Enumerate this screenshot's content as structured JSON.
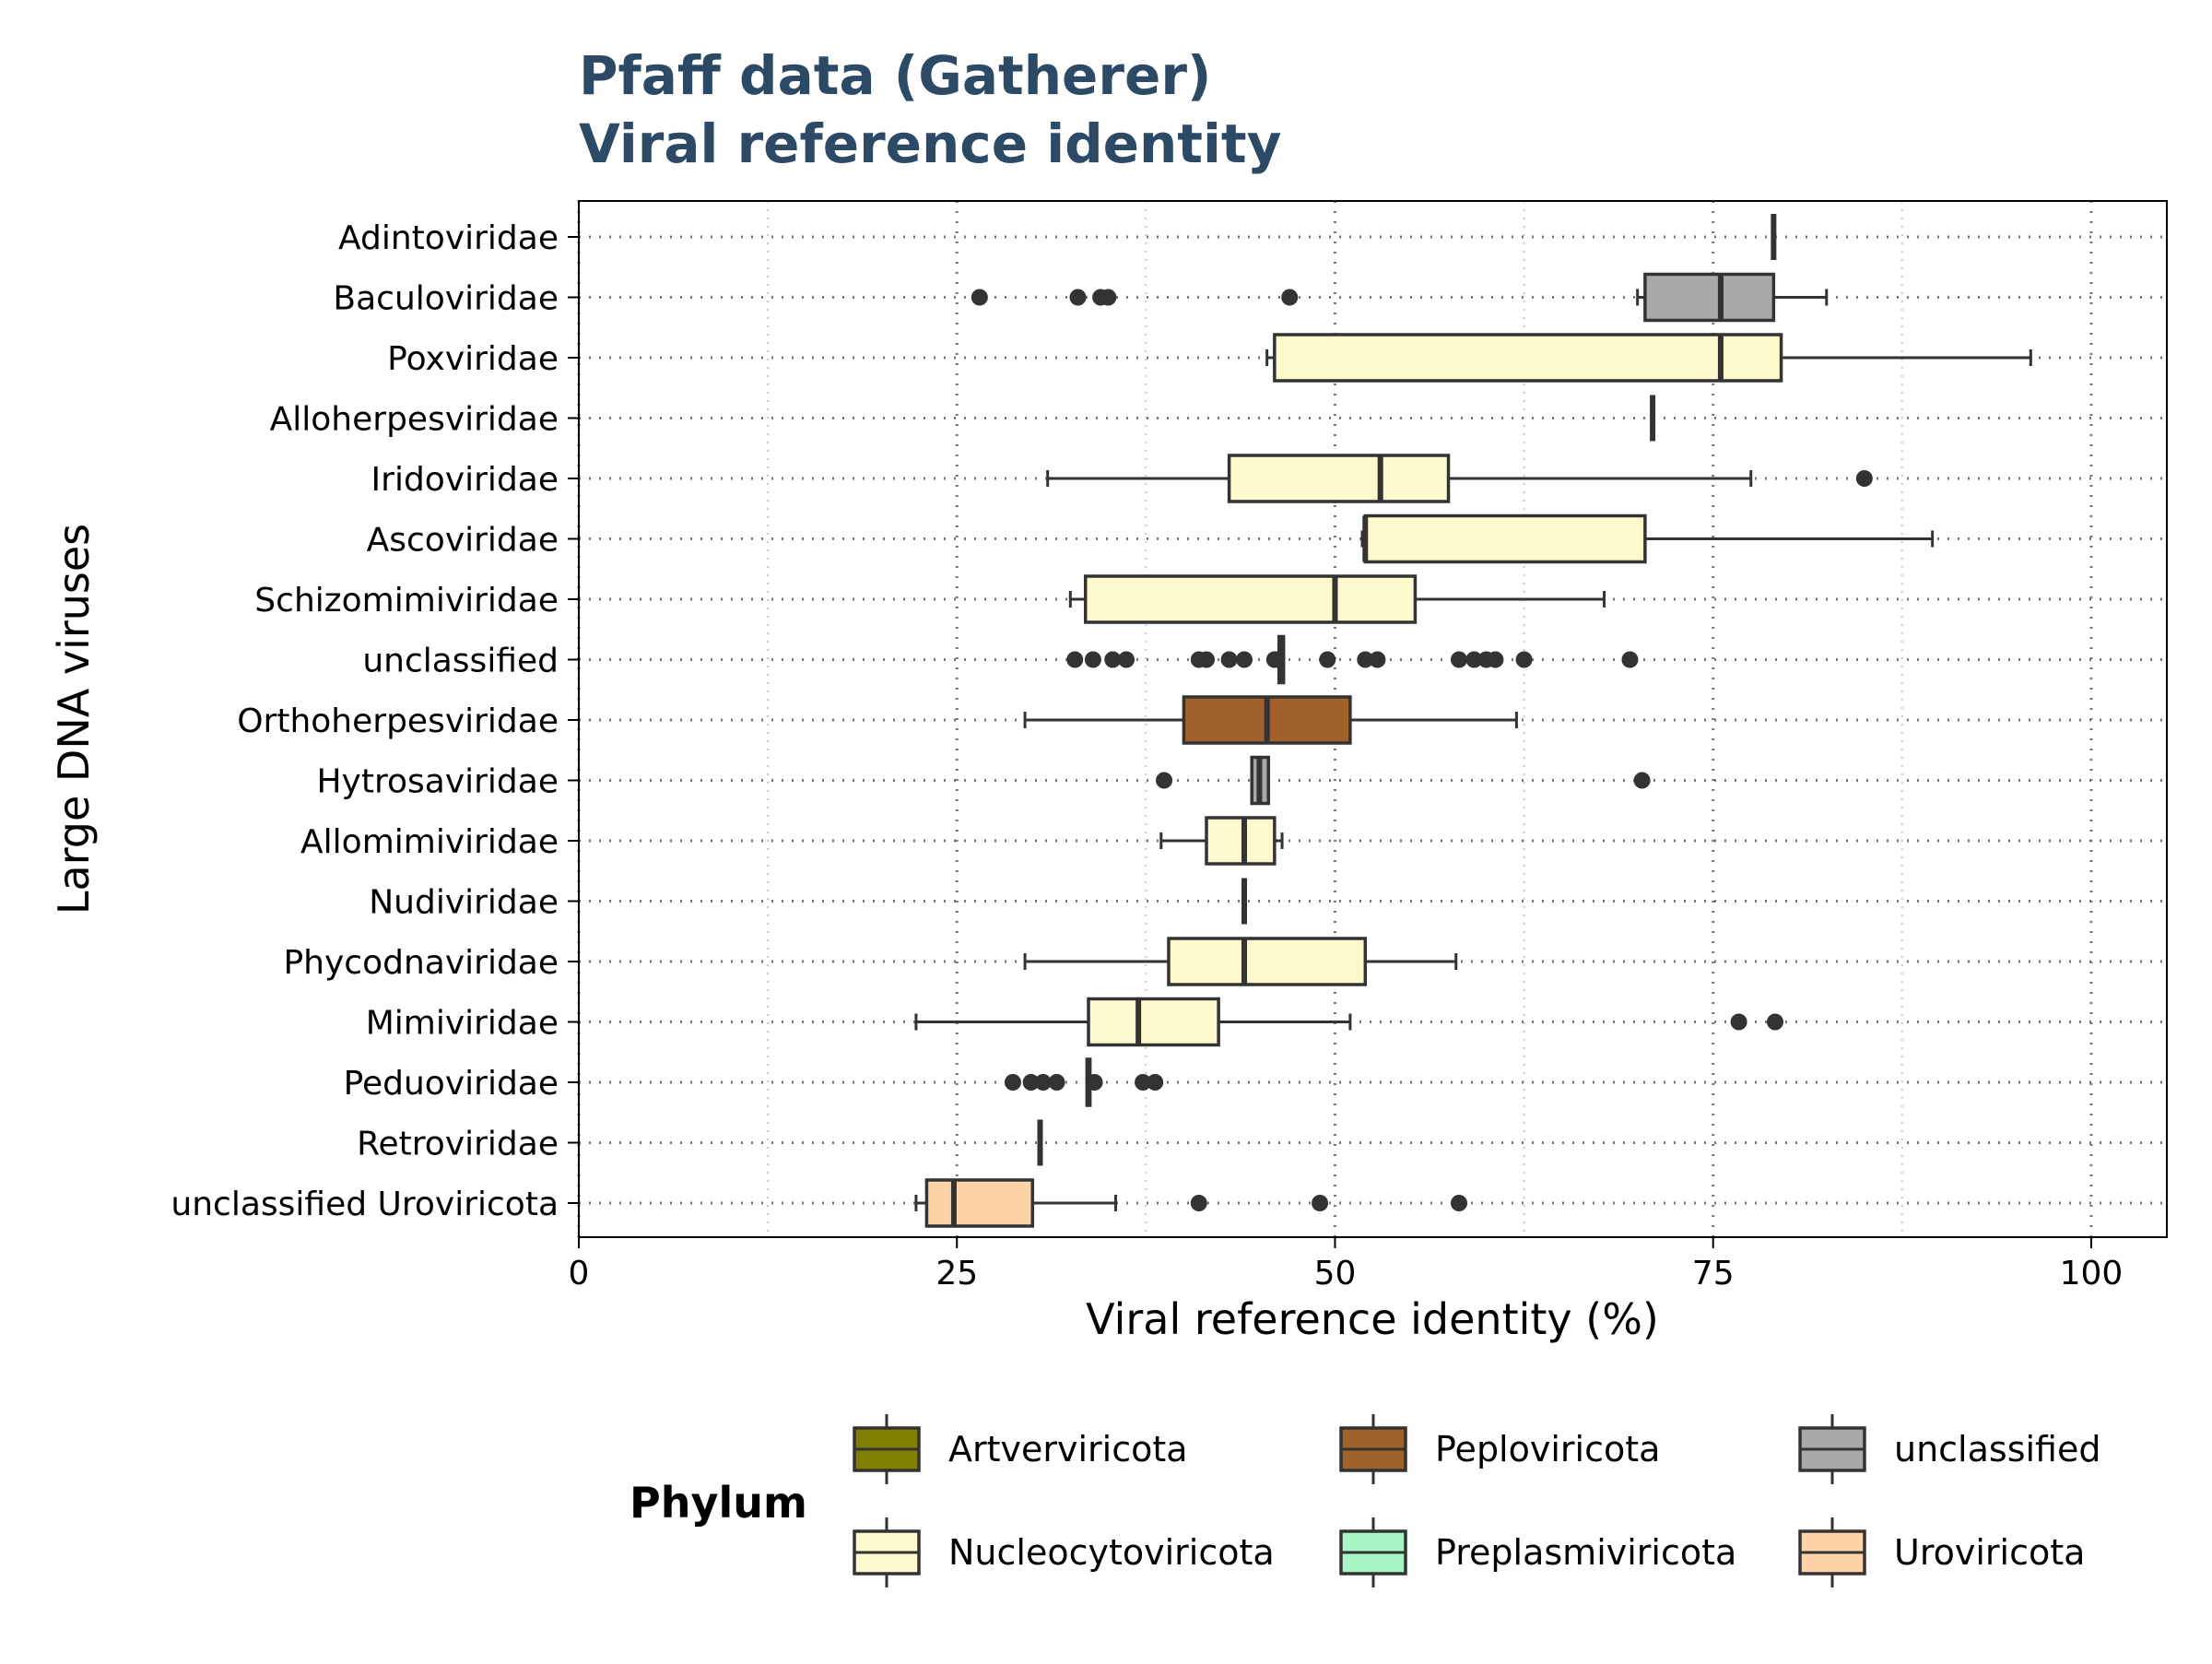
{
  "chart_data": {
    "type": "box",
    "orientation": "horizontal",
    "title": [
      "Pfaff data (Gatherer)",
      "Viral reference identity"
    ],
    "title_color": "#2c4a66",
    "xlabel": "Viral reference identity (%)",
    "ylabel": "Large DNA viruses",
    "xlim": [
      0,
      105
    ],
    "xticks": [
      0,
      25,
      50,
      75,
      100
    ],
    "xtick_labels": [
      "0",
      "25",
      "50",
      "75",
      "100"
    ],
    "grid": true,
    "legend_title": "Phylum",
    "legend_position": "bottom",
    "legend": [
      {
        "name": "Artverviricota",
        "color": "#808000"
      },
      {
        "name": "Peploviricota",
        "color": "#a0622a"
      },
      {
        "name": "unclassified",
        "color": "#a9a9a9"
      },
      {
        "name": "Nucleocytoviricota",
        "color": "#fffacd"
      },
      {
        "name": "Preplasmiviricota",
        "color": "#a6f5c4"
      },
      {
        "name": "Uroviricota",
        "color": "#ffd3a8"
      }
    ],
    "categories": [
      "Adintoviridae",
      "Baculoviridae",
      "Poxviridae",
      "Alloherpesviridae",
      "Iridoviridae",
      "Ascoviridae",
      "Schizomimiviridae",
      "unclassified",
      "Orthoherpesviridae",
      "Hytrosaviridae",
      "Allomimiviridae",
      "Nudiviridae",
      "Phycodnaviridae",
      "Mimiviridae",
      "Peduoviridae",
      "Retroviridae",
      "unclassified Uroviricota"
    ],
    "boxes": [
      {
        "category": "Adintoviridae",
        "phylum": "unclassified",
        "whislo": 79,
        "q1": 79,
        "med": 79,
        "q3": 79,
        "whishi": 79,
        "fliers": []
      },
      {
        "category": "Baculoviridae",
        "phylum": "unclassified",
        "whislo": 70,
        "q1": 70.5,
        "med": 75.5,
        "q3": 79,
        "whishi": 82.5,
        "fliers": [
          26.5,
          33,
          34.5,
          35,
          47
        ]
      },
      {
        "category": "Poxviridae",
        "phylum": "Nucleocytoviricota",
        "whislo": 45.5,
        "q1": 46,
        "med": 75.5,
        "q3": 79.5,
        "whishi": 96,
        "fliers": []
      },
      {
        "category": "Alloherpesviridae",
        "phylum": "Nucleocytoviricota",
        "whislo": 71,
        "q1": 71,
        "med": 71,
        "q3": 71,
        "whishi": 71,
        "fliers": []
      },
      {
        "category": "Iridoviridae",
        "phylum": "Nucleocytoviricota",
        "whislo": 31,
        "q1": 43,
        "med": 53,
        "q3": 57.5,
        "whishi": 77.5,
        "fliers": [
          85
        ]
      },
      {
        "category": "Ascoviridae",
        "phylum": "Nucleocytoviricota",
        "whislo": 51.8,
        "q1": 52,
        "med": 52,
        "q3": 70.5,
        "whishi": 89.5,
        "fliers": []
      },
      {
        "category": "Schizomimiviridae",
        "phylum": "Nucleocytoviricota",
        "whislo": 32.5,
        "q1": 33.5,
        "med": 50,
        "q3": 55.3,
        "whishi": 67.8,
        "fliers": []
      },
      {
        "category": "unclassified",
        "phylum": "Nucleocytoviricota",
        "whislo": 46.2,
        "q1": 46.3,
        "med": 46.5,
        "q3": 46.6,
        "whishi": 46.6,
        "fliers": [
          32.8,
          34,
          35.3,
          36.2,
          41,
          41.5,
          43,
          44,
          46,
          49.5,
          52,
          52.8,
          58.2,
          59.2,
          60,
          60.6,
          62.5,
          69.5
        ]
      },
      {
        "category": "Orthoherpesviridae",
        "phylum": "Peploviricota",
        "whislo": 29.5,
        "q1": 40,
        "med": 45.5,
        "q3": 51,
        "whishi": 62,
        "fliers": []
      },
      {
        "category": "Hytrosaviridae",
        "phylum": "unclassified",
        "whislo": 44.5,
        "q1": 44.5,
        "med": 45,
        "q3": 45.6,
        "whishi": 45.6,
        "fliers": [
          38.7,
          70.3
        ]
      },
      {
        "category": "Allomimiviridae",
        "phylum": "Nucleocytoviricota",
        "whislo": 38.5,
        "q1": 41.5,
        "med": 44,
        "q3": 46,
        "whishi": 46.5,
        "fliers": []
      },
      {
        "category": "Nudiviridae",
        "phylum": "Nucleocytoviricota",
        "whislo": 44,
        "q1": 44,
        "med": 44,
        "q3": 44,
        "whishi": 44,
        "fliers": []
      },
      {
        "category": "Phycodnaviridae",
        "phylum": "Nucleocytoviricota",
        "whislo": 29.5,
        "q1": 39,
        "med": 44,
        "q3": 52,
        "whishi": 58,
        "fliers": []
      },
      {
        "category": "Mimiviridae",
        "phylum": "Nucleocytoviricota",
        "whislo": 22.3,
        "q1": 33.7,
        "med": 37,
        "q3": 42.3,
        "whishi": 51,
        "fliers": [
          76.7,
          79.1
        ]
      },
      {
        "category": "Peduoviridae",
        "phylum": "Uroviricota",
        "whislo": 33.6,
        "q1": 33.6,
        "med": 33.7,
        "q3": 33.8,
        "whishi": 33.8,
        "fliers": [
          28.7,
          29.9,
          30.7,
          31.6,
          34.1,
          37.3,
          38.1
        ]
      },
      {
        "category": "Retroviridae",
        "phylum": "Artverviricota",
        "whislo": 30.5,
        "q1": 30.5,
        "med": 30.5,
        "q3": 30.5,
        "whishi": 30.5,
        "fliers": []
      },
      {
        "category": "unclassified Uroviricota",
        "phylum": "Uroviricota",
        "whislo": 22.3,
        "q1": 23,
        "med": 24.8,
        "q3": 30,
        "whishi": 35.5,
        "fliers": [
          41,
          49,
          58.2
        ]
      }
    ]
  }
}
